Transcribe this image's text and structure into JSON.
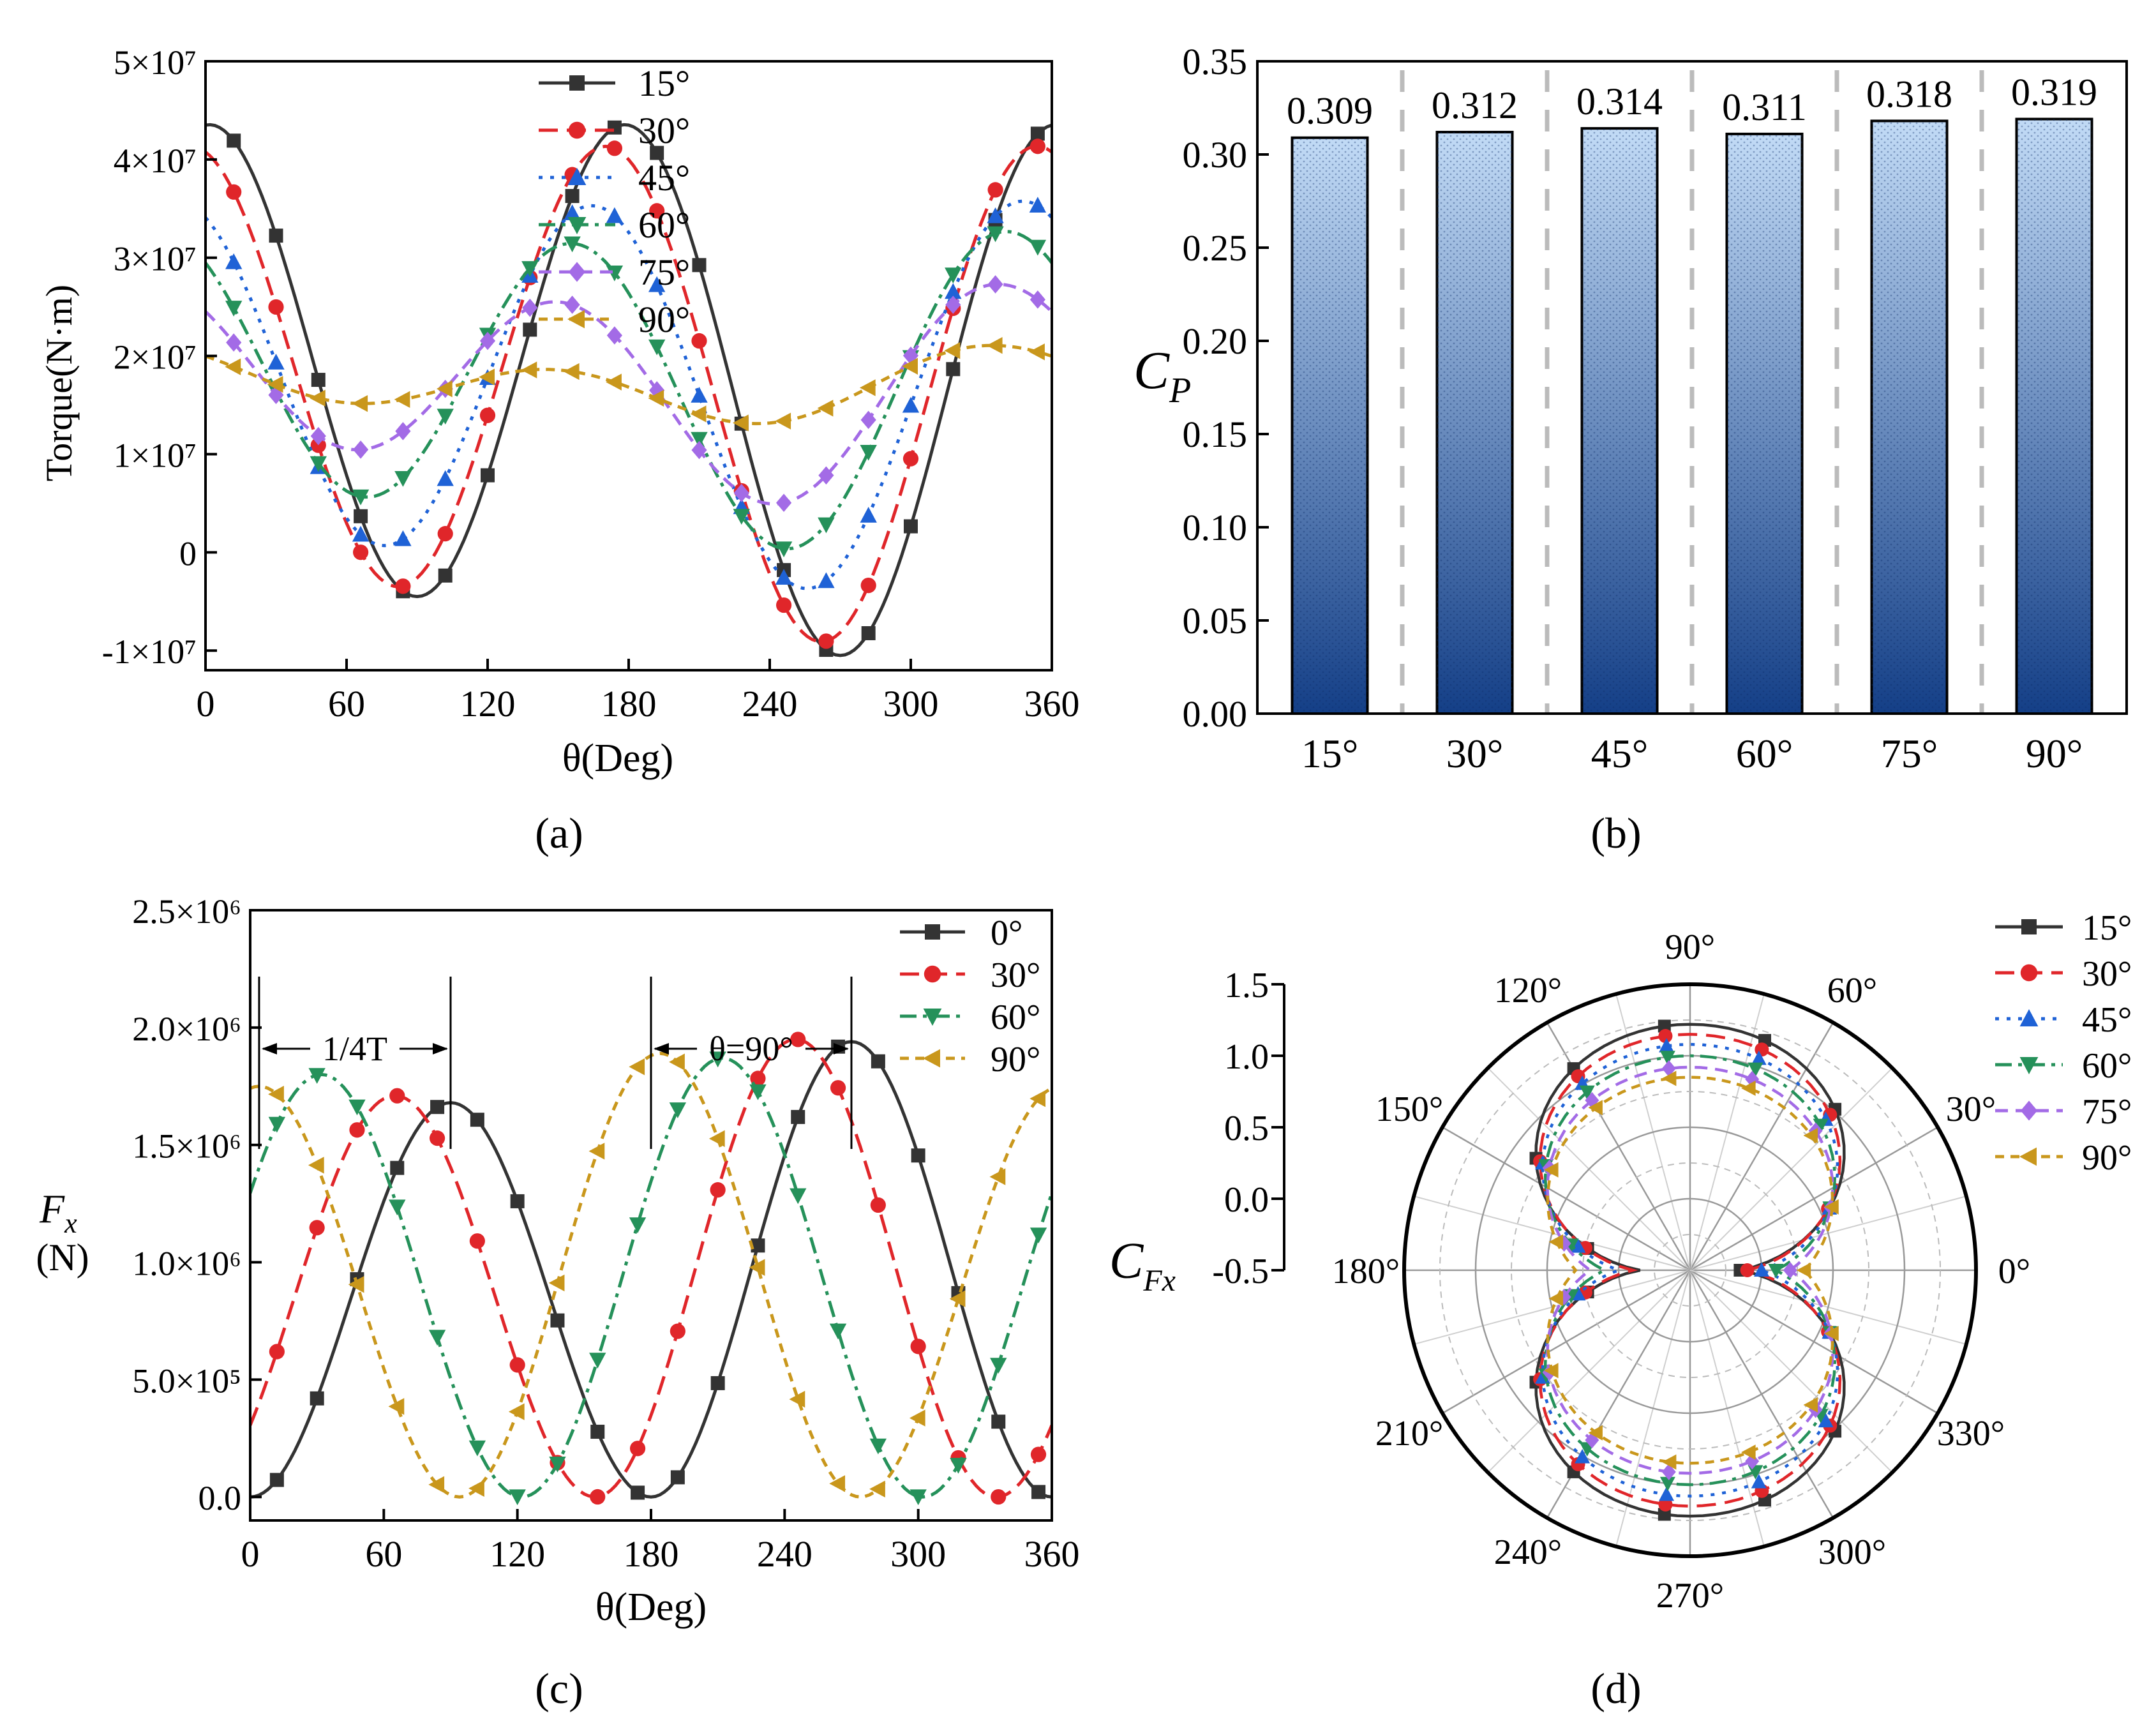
{
  "figure": {
    "panel_labels": [
      "(a)",
      "(b)",
      "(c)",
      "(d)"
    ]
  },
  "chart_data": [
    {
      "id": "a",
      "type": "line",
      "xlabel": "θ(Deg)",
      "ylabel": "Torque(N·m)",
      "xlim": [
        0,
        360
      ],
      "ylim": [
        -12000000,
        50000000
      ],
      "xticks": [
        0,
        60,
        120,
        180,
        240,
        300,
        360
      ],
      "xtick_labels": [
        "0",
        "60",
        "120",
        "180",
        "240",
        "300",
        "360"
      ],
      "yticks": [
        -10000000,
        0,
        10000000,
        20000000,
        30000000,
        40000000,
        50000000
      ],
      "ytick_labels": [
        "-1×10⁷",
        "0",
        "1×10⁷",
        "2×10⁷",
        "3×10⁷",
        "4×10⁷",
        "5×10⁷"
      ],
      "legend_position": "top-center",
      "series": [
        {
          "name": "15°",
          "color": "#333333",
          "dash": "solid",
          "marker": "square",
          "mean": 18000000,
          "amp1": 3000000,
          "phase1": 90,
          "amp2": 25500000,
          "phase2": 90
        },
        {
          "name": "30°",
          "color": "#e0262a",
          "dash": "long-dash",
          "marker": "circle",
          "mean": 17500000,
          "amp1": 2800000,
          "phase1": 82,
          "amp2": 23800000,
          "phase2": 82
        },
        {
          "name": "45°",
          "color": "#1f62d6",
          "dash": "dot",
          "marker": "triangle-up",
          "mean": 17000000,
          "amp1": 2200000,
          "phase1": 70,
          "amp2": 18500000,
          "phase2": 76
        },
        {
          "name": "60°",
          "color": "#25915a",
          "dash": "dash-dot",
          "marker": "triangle-down",
          "mean": 17500000,
          "amp1": 2700000,
          "phase1": 55,
          "amp2": 14500000,
          "phase2": 68
        },
        {
          "name": "75°",
          "color": "#a36be6",
          "dash": "dash",
          "marker": "diamond",
          "mean": 17000000,
          "amp1": 2900000,
          "phase1": 45,
          "amp2": 9300000,
          "phase2": 63
        },
        {
          "name": "90°",
          "color": "#c9971c",
          "dash": "short-dash",
          "marker": "triangle-left",
          "mean": 17000000,
          "amp1": 1600000,
          "phase1": 10,
          "amp2": 2800000,
          "phase2": 60
        }
      ]
    },
    {
      "id": "b",
      "type": "bar",
      "ylabel": "C",
      "ylabel_sub": "P",
      "ylim": [
        0,
        0.35
      ],
      "yticks": [
        0,
        0.05,
        0.1,
        0.15,
        0.2,
        0.25,
        0.3,
        0.35
      ],
      "ytick_labels": [
        "0.00",
        "0.05",
        "0.10",
        "0.15",
        "0.20",
        "0.25",
        "0.30",
        "0.35"
      ],
      "categories": [
        "15°",
        "30°",
        "45°",
        "60°",
        "75°",
        "90°"
      ],
      "values": [
        0.309,
        0.312,
        0.314,
        0.311,
        0.318,
        0.319
      ],
      "value_labels": [
        "0.309",
        "0.312",
        "0.314",
        "0.311",
        "0.318",
        "0.319"
      ],
      "bar_color_top": "#c2dbf6",
      "bar_color_bottom": "#143f87"
    },
    {
      "id": "c",
      "type": "line",
      "xlabel": "θ(Deg)",
      "ylabel": "F",
      "ylabel_sub": "x",
      "ylabel_unit": "(N)",
      "xlim": [
        0,
        360
      ],
      "ylim": [
        -100000,
        2500000
      ],
      "xticks": [
        0,
        60,
        120,
        180,
        240,
        300,
        360
      ],
      "xtick_labels": [
        "0",
        "60",
        "120",
        "180",
        "240",
        "300",
        "360"
      ],
      "yticks": [
        0,
        500000,
        1000000,
        1500000,
        2000000,
        2500000
      ],
      "ytick_labels": [
        "0.0",
        "5.0×10⁵",
        "1.0×10⁶",
        "1.5×10⁶",
        "2.0×10⁶",
        "2.5×10⁶"
      ],
      "legend_position": "top-right",
      "annotations": [
        {
          "text": "1/4T",
          "from_x": 4,
          "to_x": 90
        },
        {
          "text": "θ=90°",
          "from_x": 180,
          "to_x": 270
        }
      ],
      "series": [
        {
          "name": "0°",
          "color": "#333333",
          "dash": "solid",
          "marker": "square",
          "peaks": [
            90,
            270
          ],
          "maxes": [
            1680000,
            1940000
          ]
        },
        {
          "name": "30°",
          "color": "#e0262a",
          "dash": "long-dash",
          "marker": "circle",
          "peaks": [
            65,
            240
          ],
          "maxes": [
            1710000,
            1950000
          ]
        },
        {
          "name": "60°",
          "color": "#25915a",
          "dash": "dash-dot",
          "marker": "triangle-down",
          "peaks": [
            32,
            212
          ],
          "maxes": [
            1800000,
            1870000
          ]
        },
        {
          "name": "90°",
          "color": "#c9971c",
          "dash": "short-dash",
          "marker": "triangle-left",
          "peaks": [
            4,
            184
          ],
          "maxes": [
            1750000,
            1890000
          ]
        }
      ]
    },
    {
      "id": "d",
      "type": "polar",
      "ylabel": "C",
      "ylabel_sub": "Fx",
      "rlim": [
        -0.5,
        1.5
      ],
      "rticks": [
        -0.5,
        0,
        0.5,
        1,
        1.5
      ],
      "rtick_labels": [
        "-0.5",
        "0.0",
        "0.5",
        "1.0",
        "1.5"
      ],
      "angle_labels": [
        "0°",
        "30°",
        "60°",
        "90°",
        "120°",
        "150°",
        "180°",
        "210°",
        "240°",
        "270°",
        "300°",
        "330°"
      ],
      "legend_position": "right",
      "series": [
        {
          "name": "15°",
          "color": "#333333",
          "dash": "solid",
          "marker": "square",
          "r0": -0.15,
          "amp": 1.37
        },
        {
          "name": "30°",
          "color": "#e0262a",
          "dash": "long-dash",
          "marker": "circle",
          "r0": -0.1,
          "amp": 1.25
        },
        {
          "name": "45°",
          "color": "#1f62d6",
          "dash": "dot",
          "marker": "triangle-up",
          "r0": 0.0,
          "amp": 1.08
        },
        {
          "name": "60°",
          "color": "#25915a",
          "dash": "dash-dot",
          "marker": "triangle-down",
          "r0": 0.1,
          "amp": 0.9
        },
        {
          "name": "75°",
          "color": "#a36be6",
          "dash": "dash",
          "marker": "diamond",
          "r0": 0.2,
          "amp": 0.72
        },
        {
          "name": "90°",
          "color": "#c9971c",
          "dash": "short-dash",
          "marker": "triangle-left",
          "r0": 0.3,
          "amp": 0.55
        }
      ]
    }
  ]
}
